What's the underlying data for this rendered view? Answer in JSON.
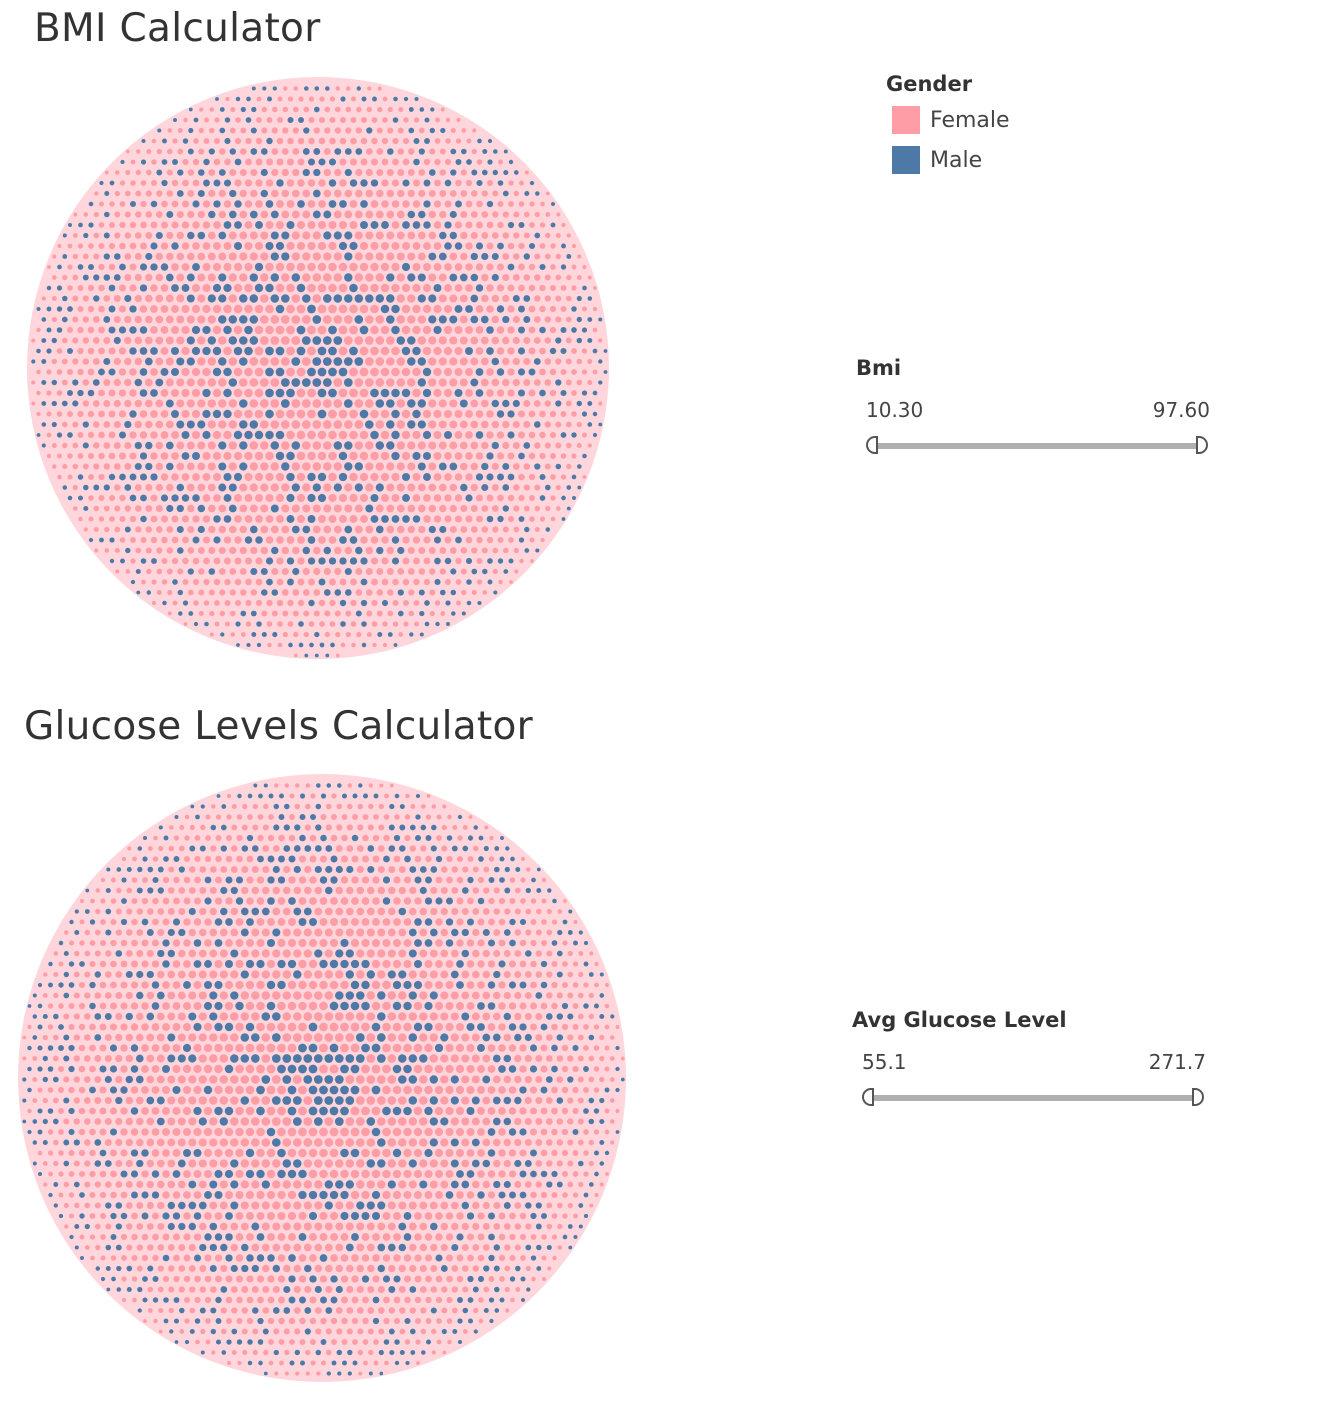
{
  "dashboard": {
    "bmi_title": "BMI Calculator",
    "glucose_title": "Glucose Levels Calculator"
  },
  "legend": {
    "title": "Gender",
    "items": [
      {
        "label": "Female",
        "color": "#ff9da7"
      },
      {
        "label": "Male",
        "color": "#4e79a7"
      }
    ]
  },
  "filters": {
    "bmi": {
      "title": "Bmi",
      "min": "10.30",
      "max": "97.60"
    },
    "glucose": {
      "title": "Avg Glucose Level",
      "min": "55.1",
      "max": "271.7"
    }
  },
  "chart_data": [
    {
      "type": "scatter",
      "title": "BMI Calculator",
      "layout": "spherical packed circle of individual records",
      "series": [
        {
          "name": "Female",
          "color": "#ff9da7"
        },
        {
          "name": "Male",
          "color": "#4e79a7"
        }
      ]
    },
    {
      "type": "scatter",
      "title": "Glucose Levels Calculator",
      "layout": "spherical packed circle of individual records",
      "series": [
        {
          "name": "Female",
          "color": "#ff9da7"
        },
        {
          "name": "Male",
          "color": "#4e79a7"
        }
      ]
    }
  ]
}
